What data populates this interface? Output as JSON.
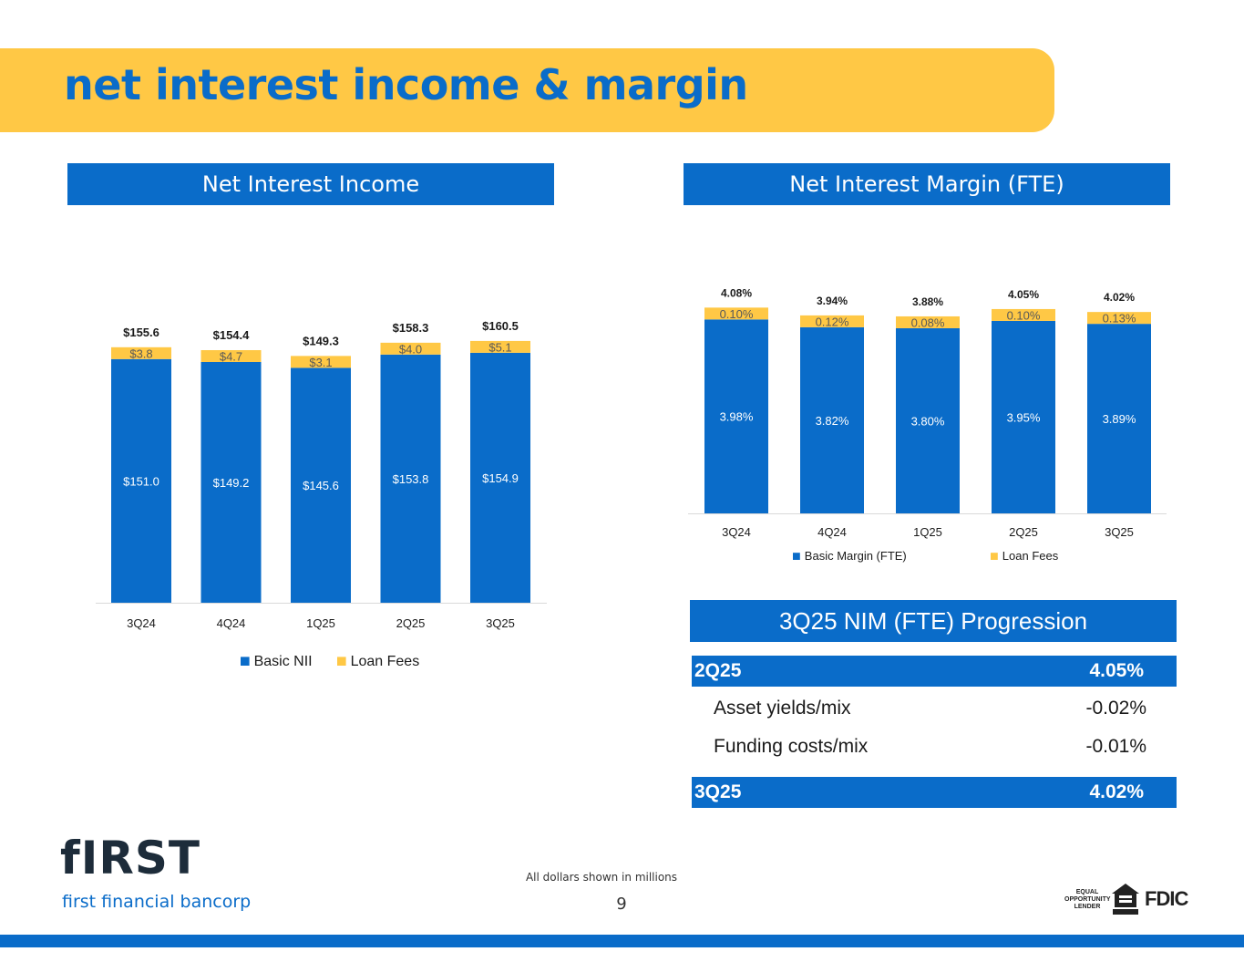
{
  "header": {
    "title": "net interest income & margin"
  },
  "sections": {
    "nii_header": "Net Interest Income",
    "nim_header": "Net Interest Margin (FTE)",
    "progression_header": "3Q25 NIM (FTE) Progression"
  },
  "colors": {
    "brand_blue": "#0A6CC9",
    "brand_yellow": "#FFC845"
  },
  "chart_data": [
    {
      "type": "bar",
      "stacked": true,
      "title": "Net Interest Income",
      "categories": [
        "3Q24",
        "4Q24",
        "1Q25",
        "2Q25",
        "3Q25"
      ],
      "series": [
        {
          "name": "Basic NII",
          "color": "#0A6CC9",
          "values": [
            151.0,
            149.2,
            145.6,
            153.8,
            154.9
          ],
          "labels": [
            "$151.0",
            "$149.2",
            "$145.6",
            "$153.8",
            "$154.9"
          ]
        },
        {
          "name": "Loan Fees",
          "color": "#FFC845",
          "values": [
            3.8,
            4.7,
            3.1,
            4.0,
            5.1
          ],
          "labels": [
            "$3.8",
            "$4.7",
            "$3.1",
            "$4.0",
            "$5.1"
          ]
        }
      ],
      "totals": [
        "$155.6",
        "$154.4",
        "$149.3",
        "$158.3",
        "$160.5"
      ],
      "total_values": [
        155.6,
        154.4,
        149.3,
        158.3,
        160.5
      ],
      "legend_position": "bottom",
      "grid": false
    },
    {
      "type": "bar",
      "stacked": true,
      "title": "Net Interest Margin (FTE)",
      "categories": [
        "3Q24",
        "4Q24",
        "1Q25",
        "2Q25",
        "3Q25"
      ],
      "series": [
        {
          "name": "Basic Margin (FTE)",
          "color": "#0A6CC9",
          "values": [
            3.98,
            3.82,
            3.8,
            3.95,
            3.89
          ],
          "labels": [
            "3.98%",
            "3.82%",
            "3.80%",
            "3.95%",
            "3.89%"
          ]
        },
        {
          "name": "Loan Fees",
          "color": "#FFC845",
          "values": [
            0.1,
            0.12,
            0.08,
            0.1,
            0.13
          ],
          "labels": [
            "0.10%",
            "0.12%",
            "0.08%",
            "0.10%",
            "0.13%"
          ]
        }
      ],
      "totals": [
        "4.08%",
        "3.94%",
        "3.88%",
        "4.05%",
        "4.02%"
      ],
      "total_values": [
        4.08,
        3.94,
        3.88,
        4.05,
        4.02
      ],
      "legend_position": "bottom",
      "grid": false
    }
  ],
  "progression": {
    "start": {
      "label": "2Q25",
      "value": "4.05%"
    },
    "rows": [
      {
        "label": "Asset yields/mix",
        "value": "-0.02%"
      },
      {
        "label": "Funding costs/mix",
        "value": "-0.01%"
      }
    ],
    "end": {
      "label": "3Q25",
      "value": "4.02%"
    }
  },
  "footer": {
    "logo_word": "fIRST",
    "logo_sub": "first financial bancorp",
    "note": "All dollars shown in millions",
    "page": "9",
    "equal_opportunity": "EQUAL OPPORTUNITY LENDER",
    "fdic": "FDIC"
  }
}
